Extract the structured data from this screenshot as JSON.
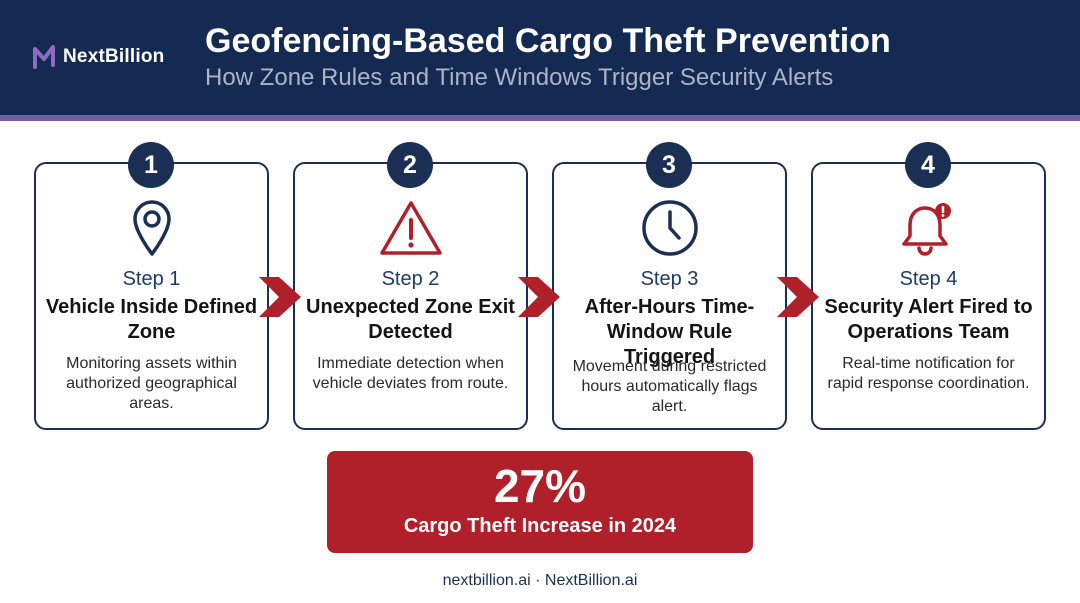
{
  "brand": {
    "name": "NextBillion"
  },
  "header": {
    "title": "Geofencing-Based Cargo Theft Prevention",
    "subtitle": "How Zone Rules and Time Windows Trigger Security Alerts"
  },
  "steps": [
    {
      "number": "1",
      "label": "Step 1",
      "title": "Vehicle Inside Defined Zone",
      "description": "Monitoring assets within authorized geographical areas.",
      "icon": "location-pin-icon"
    },
    {
      "number": "2",
      "label": "Step 2",
      "title": "Unexpected Zone Exit Detected",
      "description": "Immediate detection when vehicle deviates from route.",
      "icon": "warning-triangle-icon"
    },
    {
      "number": "3",
      "label": "Step 3",
      "title": "After-Hours Time-Window Rule Triggered",
      "description": "Movement during restricted hours automatically flags alert.",
      "icon": "clock-icon"
    },
    {
      "number": "4",
      "label": "Step 4",
      "title": "Security Alert Fired to Operations Team",
      "description": "Real-time notification for rapid response coordination.",
      "icon": "alert-bell-icon"
    }
  ],
  "stat": {
    "value": "27%",
    "label": "Cargo Theft Increase in 2024"
  },
  "footer": {
    "text": "nextbillion.ai · NextBillion.ai"
  },
  "colors": {
    "navy": "#142a52",
    "accent_red": "#b0202a",
    "purple_stripe": "#7c5aa6"
  }
}
